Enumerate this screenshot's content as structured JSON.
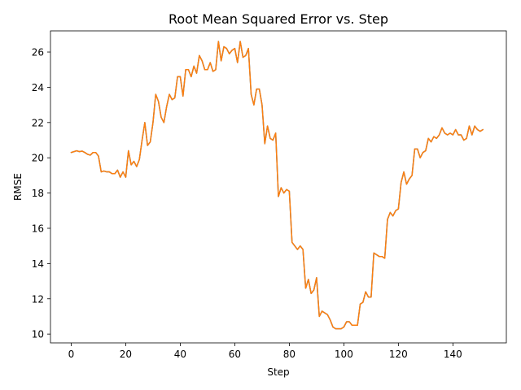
{
  "chart_data": {
    "type": "line",
    "title": "Root Mean Squared Error vs. Step",
    "xlabel": "Step",
    "ylabel": "RMSE",
    "xlim": [
      -7.6,
      159.6
    ],
    "ylim": [
      9.5,
      27.2
    ],
    "xticks": [
      0,
      20,
      40,
      60,
      80,
      100,
      120,
      140
    ],
    "yticks": [
      10,
      12,
      14,
      16,
      18,
      20,
      22,
      24,
      26
    ],
    "grid": false,
    "series": [
      {
        "color": "#1f77b4",
        "x": [
          0,
          1,
          2,
          3,
          4,
          5,
          6,
          7,
          8,
          9,
          10,
          11,
          12,
          13,
          14,
          15,
          16,
          17,
          18,
          19,
          20,
          21,
          22,
          23,
          24,
          25,
          26,
          27,
          28,
          29,
          30,
          31,
          32,
          33,
          34,
          35,
          36,
          37,
          38,
          39,
          40,
          41,
          42,
          43,
          44,
          45,
          46,
          47,
          48,
          49,
          50,
          51,
          52,
          53,
          54,
          55,
          56,
          57,
          58,
          59,
          60,
          61,
          62,
          63,
          64,
          65,
          66,
          67,
          68,
          69,
          70,
          71,
          72,
          73,
          74,
          75,
          76,
          77,
          78,
          79,
          80,
          81,
          82,
          83,
          84,
          85,
          86,
          87,
          88,
          89,
          90,
          91,
          92,
          93,
          94,
          95,
          96,
          97,
          98,
          99,
          100,
          101,
          102,
          103,
          104,
          105,
          106,
          107,
          108,
          109,
          110,
          111,
          112,
          113,
          114,
          115,
          116,
          117,
          118,
          119,
          120,
          121,
          122,
          123,
          124,
          125,
          126,
          127,
          128,
          129,
          130,
          131,
          132,
          133,
          134,
          135,
          136,
          137,
          138,
          139,
          140,
          141,
          142,
          143,
          144,
          145,
          146,
          147,
          148,
          149,
          150,
          151
        ],
        "y": [
          20.3,
          20.35,
          20.4,
          20.35,
          20.38,
          20.3,
          20.2,
          20.15,
          20.3,
          20.3,
          20.1,
          19.2,
          19.25,
          19.2,
          19.2,
          19.1,
          19.1,
          19.3,
          18.9,
          19.2,
          18.9,
          20.4,
          19.6,
          19.8,
          19.5,
          19.9,
          21.0,
          22.0,
          20.7,
          20.9,
          22.0,
          23.6,
          23.2,
          22.3,
          22.0,
          22.9,
          23.6,
          23.3,
          23.4,
          24.6,
          24.6,
          23.5,
          25.0,
          25.0,
          24.6,
          25.2,
          24.8,
          25.8,
          25.5,
          25.0,
          25.0,
          25.4,
          24.9,
          25.0,
          26.6,
          25.5,
          26.3,
          26.2,
          25.9,
          26.1,
          26.2,
          25.4,
          26.6,
          25.7,
          25.8,
          26.2,
          23.6,
          23.0,
          23.9,
          23.9,
          23.0,
          20.8,
          21.8,
          21.1,
          21.0,
          21.4,
          17.8,
          18.3,
          18.0,
          18.2,
          18.1,
          15.2,
          15.0,
          14.8,
          15.0,
          14.8,
          12.6,
          13.1,
          12.3,
          12.5,
          13.2,
          11.0,
          11.3,
          11.2,
          11.1,
          10.8,
          10.4,
          10.3,
          10.3,
          10.3,
          10.4,
          10.7,
          10.7,
          10.5,
          10.5,
          10.5,
          11.7,
          11.8,
          12.4,
          12.1,
          12.1,
          14.6,
          14.5,
          14.4,
          14.4,
          14.3,
          16.5,
          16.9,
          16.7,
          17.0,
          17.1,
          18.6,
          19.2,
          18.5,
          18.8,
          19.0,
          20.5,
          20.5,
          20.0,
          20.3,
          20.4,
          21.1,
          20.9,
          21.2,
          21.1,
          21.3,
          21.7,
          21.4,
          21.3,
          21.4,
          21.3,
          21.6,
          21.3,
          21.3,
          21.0,
          21.1,
          21.8,
          21.3,
          21.8,
          21.6,
          21.5,
          21.6
        ]
      },
      {
        "color": "#ff7f0e",
        "x": [
          0,
          1,
          2,
          3,
          4,
          5,
          6,
          7,
          8,
          9,
          10,
          11,
          12,
          13,
          14,
          15,
          16,
          17,
          18,
          19,
          20,
          21,
          22,
          23,
          24,
          25,
          26,
          27,
          28,
          29,
          30,
          31,
          32,
          33,
          34,
          35,
          36,
          37,
          38,
          39,
          40,
          41,
          42,
          43,
          44,
          45,
          46,
          47,
          48,
          49,
          50,
          51,
          52,
          53,
          54,
          55,
          56,
          57,
          58,
          59,
          60,
          61,
          62,
          63,
          64,
          65,
          66,
          67,
          68,
          69,
          70,
          71,
          72,
          73,
          74,
          75,
          76,
          77,
          78,
          79,
          80,
          81,
          82,
          83,
          84,
          85,
          86,
          87,
          88,
          89,
          90,
          91,
          92,
          93,
          94,
          95,
          96,
          97,
          98,
          99,
          100,
          101,
          102,
          103,
          104,
          105,
          106,
          107,
          108,
          109,
          110,
          111,
          112,
          113,
          114,
          115,
          116,
          117,
          118,
          119,
          120,
          121,
          122,
          123,
          124,
          125,
          126,
          127,
          128,
          129,
          130,
          131,
          132,
          133,
          134,
          135,
          136,
          137,
          138,
          139,
          140,
          141,
          142,
          143,
          144,
          145,
          146,
          147,
          148,
          149,
          150,
          151
        ],
        "y": [
          20.3,
          20.35,
          20.4,
          20.35,
          20.38,
          20.3,
          20.2,
          20.15,
          20.3,
          20.3,
          20.1,
          19.2,
          19.25,
          19.2,
          19.2,
          19.1,
          19.1,
          19.3,
          18.9,
          19.2,
          18.9,
          20.4,
          19.6,
          19.8,
          19.5,
          19.9,
          21.0,
          22.0,
          20.7,
          20.9,
          22.0,
          23.6,
          23.2,
          22.3,
          22.0,
          22.9,
          23.6,
          23.3,
          23.4,
          24.6,
          24.6,
          23.5,
          25.0,
          25.0,
          24.6,
          25.2,
          24.8,
          25.8,
          25.5,
          25.0,
          25.0,
          25.4,
          24.9,
          25.0,
          26.6,
          25.5,
          26.3,
          26.2,
          25.9,
          26.1,
          26.2,
          25.4,
          26.6,
          25.7,
          25.8,
          26.2,
          23.6,
          23.0,
          23.9,
          23.9,
          23.0,
          20.8,
          21.8,
          21.1,
          21.0,
          21.4,
          17.8,
          18.3,
          18.0,
          18.2,
          18.1,
          15.2,
          15.0,
          14.8,
          15.0,
          14.8,
          12.6,
          13.1,
          12.3,
          12.5,
          13.2,
          11.0,
          11.3,
          11.2,
          11.1,
          10.8,
          10.4,
          10.3,
          10.3,
          10.3,
          10.4,
          10.7,
          10.7,
          10.5,
          10.5,
          10.5,
          11.7,
          11.8,
          12.4,
          12.1,
          12.1,
          14.6,
          14.5,
          14.4,
          14.4,
          14.3,
          16.5,
          16.9,
          16.7,
          17.0,
          17.1,
          18.6,
          19.2,
          18.5,
          18.8,
          19.0,
          20.5,
          20.5,
          20.0,
          20.3,
          20.4,
          21.1,
          20.9,
          21.2,
          21.1,
          21.3,
          21.7,
          21.4,
          21.3,
          21.4,
          21.3,
          21.6,
          21.3,
          21.3,
          21.0,
          21.1,
          21.8,
          21.3,
          21.8,
          21.6,
          21.5,
          21.6
        ]
      }
    ]
  }
}
